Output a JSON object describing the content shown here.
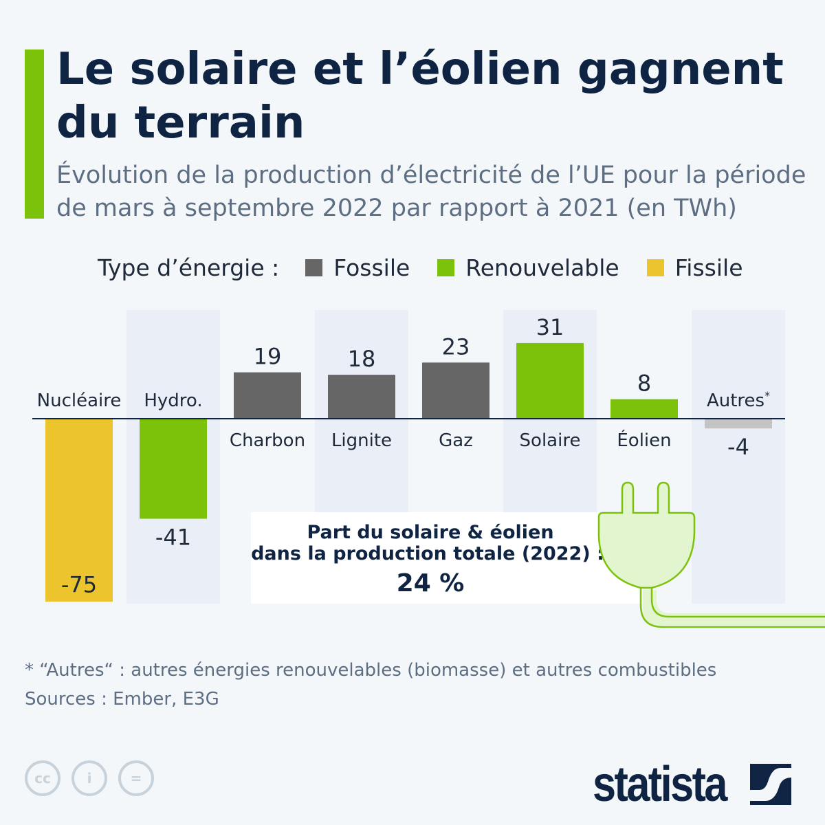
{
  "title": "Le solaire et l’éolien gagnent du terrain",
  "subtitle": "Évolution de la production d’électricité de l’UE pour la période de mars à septembre 2022 par rapport à 2021 (en TWh)",
  "legend": {
    "label": "Type d’énergie :",
    "items": [
      {
        "name": "Fossile",
        "color": "#666666"
      },
      {
        "name": "Renouvelable",
        "color": "#7dc20a"
      },
      {
        "name": "Fissile",
        "color": "#ecc42e"
      }
    ]
  },
  "chart_data": {
    "type": "bar",
    "categories": [
      "Nucléaire",
      "Hydro.",
      "Charbon",
      "Lignite",
      "Gaz",
      "Solaire",
      "Éolien",
      "Autres"
    ],
    "values": [
      -75,
      -41,
      19,
      18,
      23,
      31,
      8,
      -4
    ],
    "value_labels": [
      "-75",
      "-41",
      "19",
      "18",
      "23",
      "31",
      "8",
      "-4"
    ],
    "types": [
      "Fissile",
      "Renouvelable",
      "Fossile",
      "Fossile",
      "Fossile",
      "Renouvelable",
      "Renouvelable",
      "Autres"
    ],
    "colors": [
      "#ecc42e",
      "#7dc20a",
      "#666666",
      "#666666",
      "#666666",
      "#7dc20a",
      "#7dc20a",
      "#c4c4c4"
    ],
    "category_footnote_marker": {
      "Autres": "*"
    },
    "unit": "TWh",
    "grid": false
  },
  "annotation": {
    "line1": "Part du solaire & éolien",
    "line2": "dans la production totale (2022) :",
    "value": "24 %",
    "icon": "plug-icon"
  },
  "footnote": "* “Autres“ : autres énergies renouvelables (biomasse) et autres combustibles",
  "sources": "Sources : Ember, E3G",
  "license_icons": [
    "cc-icon",
    "attribution-icon",
    "no-derivatives-icon"
  ],
  "brand": "statista"
}
